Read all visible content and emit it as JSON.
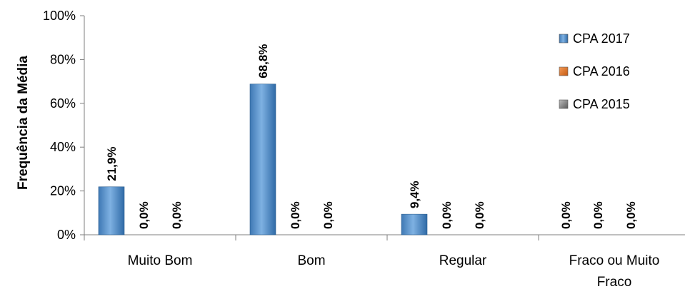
{
  "chart_data": {
    "type": "bar",
    "title": "",
    "xlabel": "",
    "ylabel": "Frequência da Média",
    "ylim": [
      0,
      100
    ],
    "yticks": [
      "0%",
      "20%",
      "40%",
      "60%",
      "80%",
      "100%"
    ],
    "categories": [
      [
        "Muito Bom"
      ],
      [
        "Bom"
      ],
      [
        "Regular"
      ],
      [
        "Fraco ou Muito",
        "Fraco"
      ]
    ],
    "series": [
      {
        "name": "CPA 2017",
        "color": "#5b9bd5",
        "values": [
          21.9,
          68.8,
          9.4,
          0.0
        ],
        "labels": [
          "21,9%",
          "68,8%",
          "9,4%",
          "0,0%"
        ]
      },
      {
        "name": "CPA 2016",
        "color": "#ed7d31",
        "values": [
          0.0,
          0.0,
          0.0,
          0.0
        ],
        "labels": [
          "0,0%",
          "0,0%",
          "0,0%",
          "0,0%"
        ]
      },
      {
        "name": "CPA 2015",
        "color": "#8c8c8c",
        "values": [
          0.0,
          0.0,
          0.0,
          0.0
        ],
        "labels": [
          "0,0%",
          "0,0%",
          "0,0%",
          "0,0%"
        ]
      }
    ],
    "legend_position": "right",
    "grid": false
  }
}
